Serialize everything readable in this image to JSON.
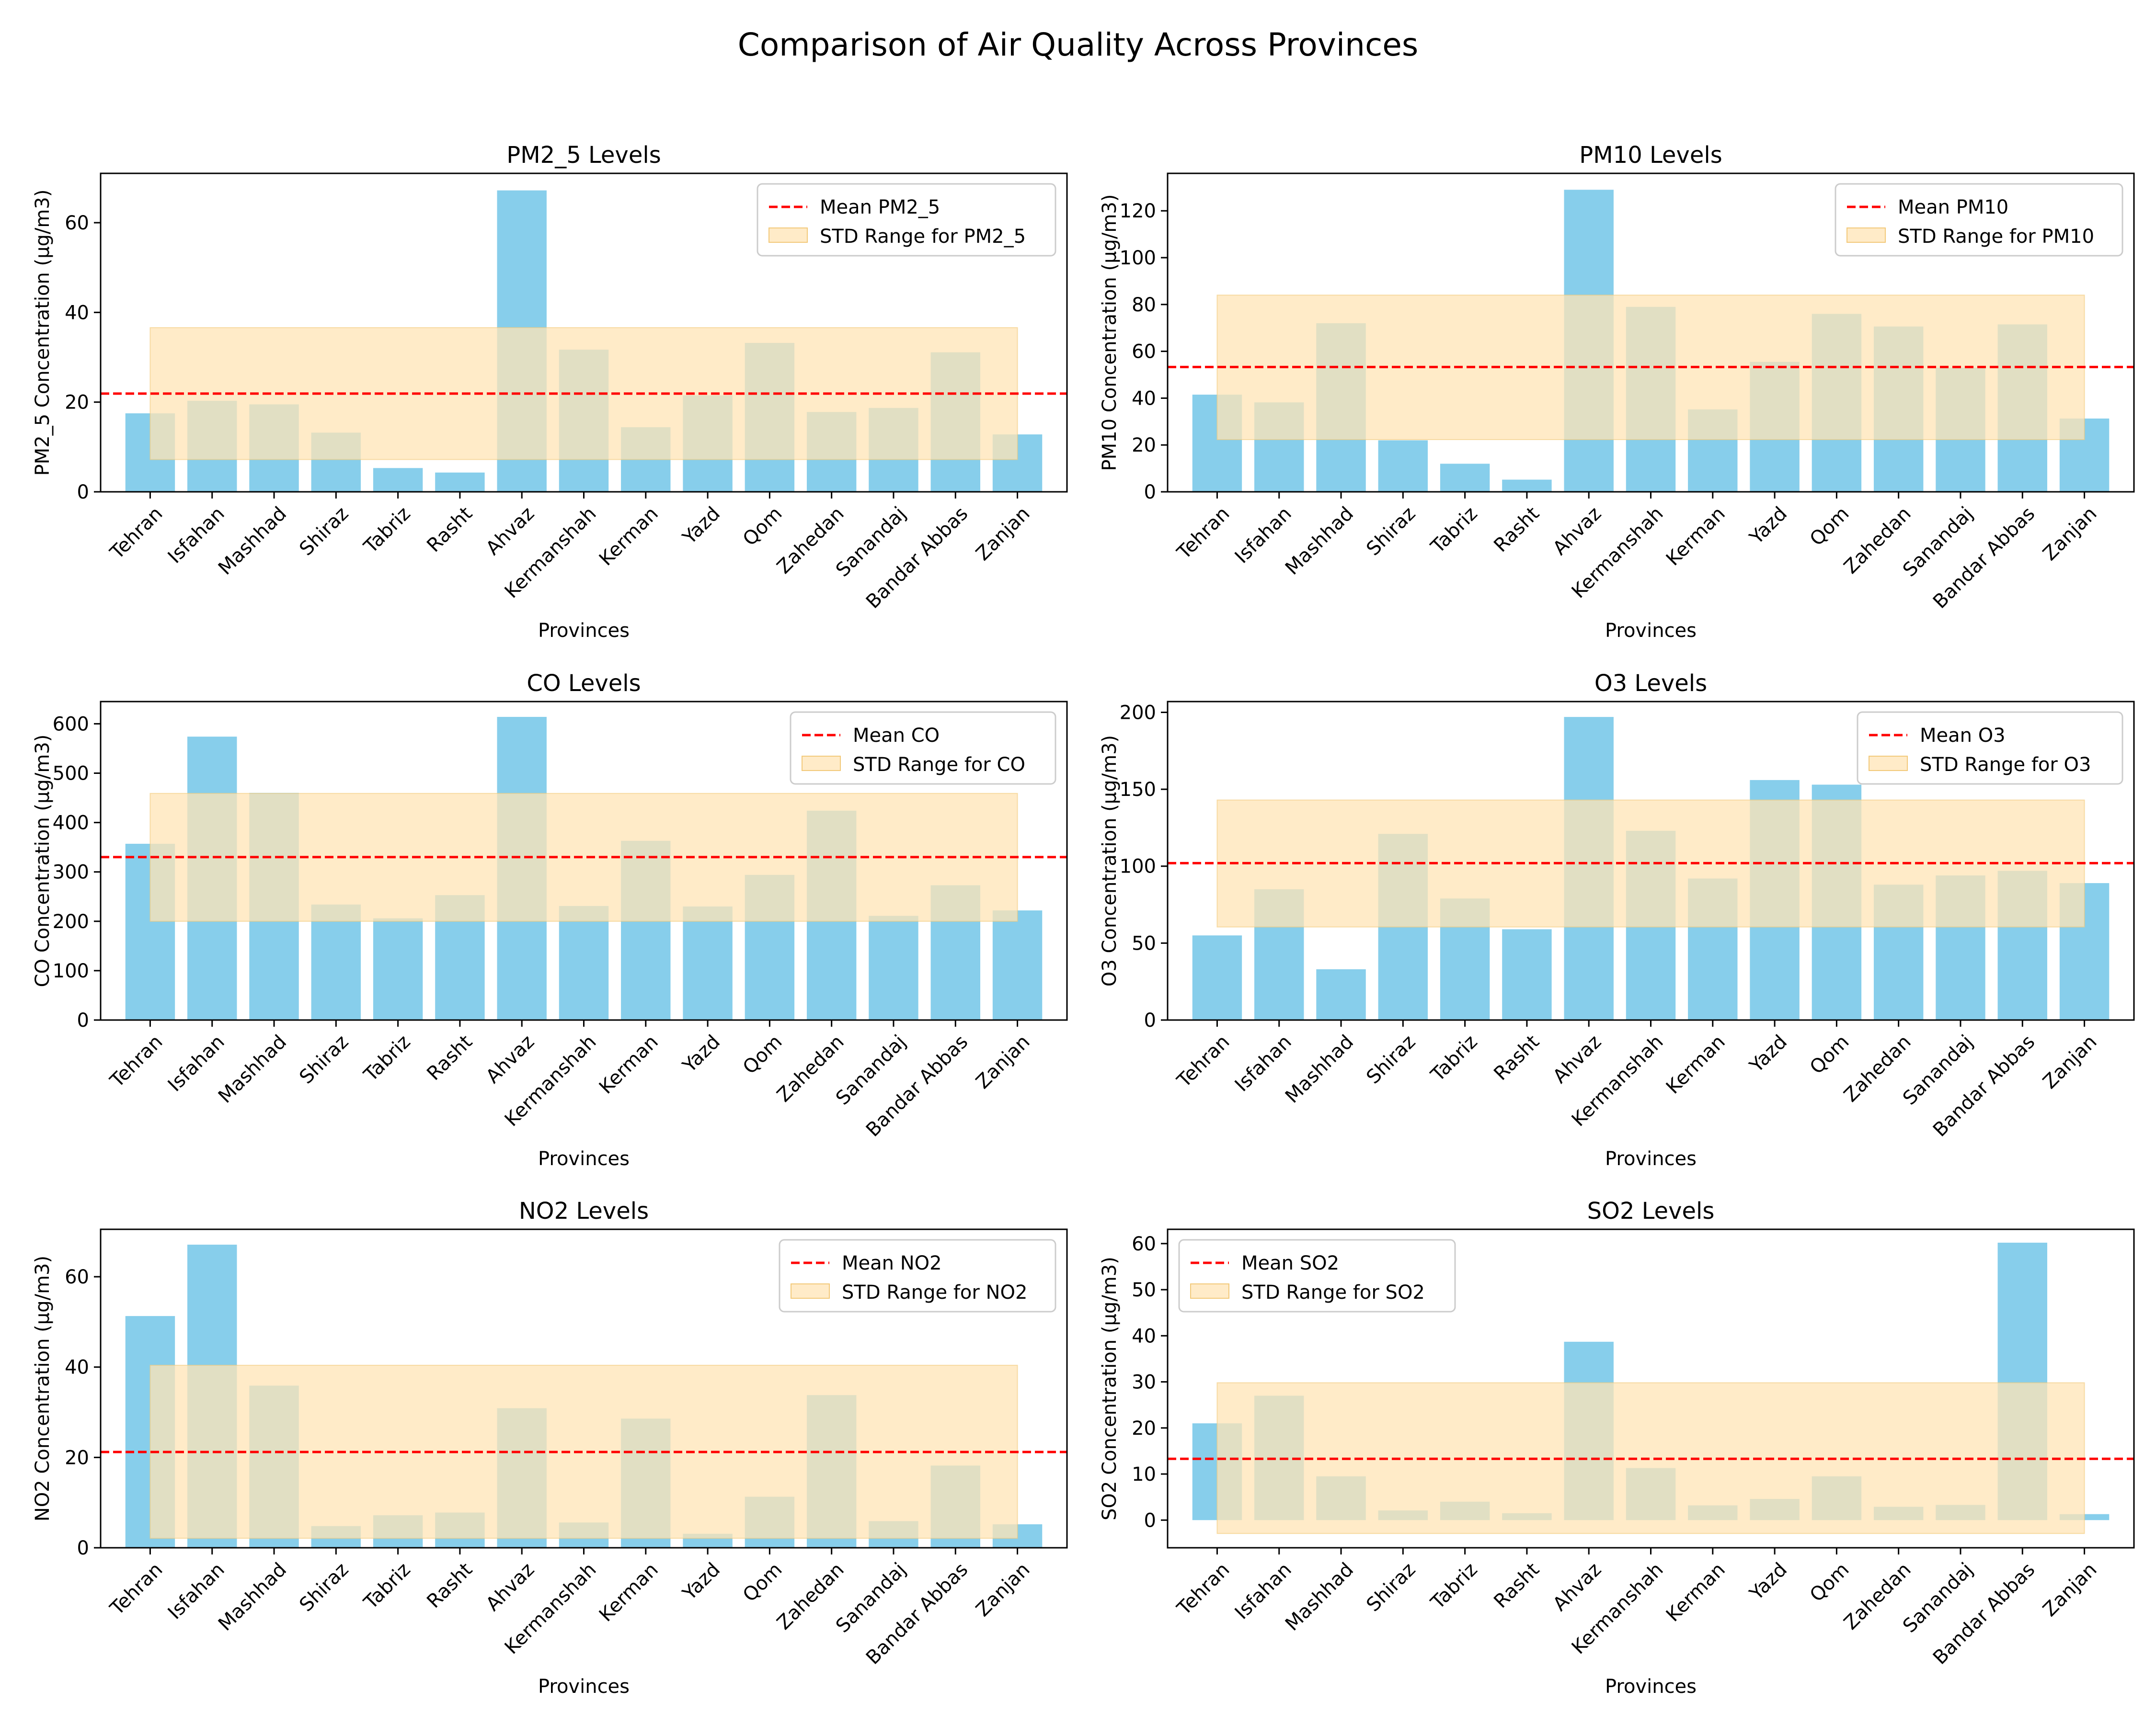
{
  "figure": {
    "title": "Comparison of Air Quality Across Provinces"
  },
  "colors": {
    "bar": "#87CEEB",
    "mean_line": "#FF0000",
    "std_band": "#FFE4B5"
  },
  "chart_data": [
    {
      "type": "bar",
      "title": "PM2_5 Levels",
      "xlabel": "Provinces",
      "ylabel": "PM2_5 Concentration (µg/m3)",
      "categories": [
        "Tehran",
        "Isfahan",
        "Mashhad",
        "Shiraz",
        "Tabriz",
        "Rasht",
        "Ahvaz",
        "Kermanshah",
        "Kerman",
        "Yazd",
        "Qom",
        "Zahedan",
        "Sanandaj",
        "Bandar Abbas",
        "Zanjan"
      ],
      "values": [
        17.5,
        20.3,
        19.5,
        13.2,
        5.3,
        4.3,
        67.2,
        31.7,
        14.4,
        21.5,
        33.2,
        17.8,
        18.7,
        31.1,
        12.8
      ],
      "mean": 21.9,
      "std_range": [
        7.2,
        36.6
      ],
      "ylim": [
        0,
        71
      ],
      "yticks": [
        0,
        20,
        40,
        60
      ],
      "legend": {
        "position": "top-right",
        "mean_label": "Mean PM2_5",
        "std_label": "STD Range for PM2_5"
      }
    },
    {
      "type": "bar",
      "title": "PM10 Levels",
      "xlabel": "Provinces",
      "ylabel": "PM10 Concentration (µg/m3)",
      "categories": [
        "Tehran",
        "Isfahan",
        "Mashhad",
        "Shiraz",
        "Tabriz",
        "Rasht",
        "Ahvaz",
        "Kermanshah",
        "Kerman",
        "Yazd",
        "Qom",
        "Zahedan",
        "Sanandaj",
        "Bandar Abbas",
        "Zanjan"
      ],
      "values": [
        41.5,
        38.2,
        72.0,
        22.0,
        12.0,
        5.2,
        129.0,
        79.0,
        35.2,
        55.5,
        76.0,
        70.6,
        53.0,
        71.5,
        31.3
      ],
      "mean": 53.3,
      "std_range": [
        22.3,
        84.0
      ],
      "ylim": [
        0,
        136
      ],
      "yticks": [
        0,
        20,
        40,
        60,
        80,
        100,
        120
      ],
      "legend": {
        "position": "top-right",
        "mean_label": "Mean PM10",
        "std_label": "STD Range for PM10"
      }
    },
    {
      "type": "bar",
      "title": "CO Levels",
      "xlabel": "Provinces",
      "ylabel": "CO Concentration (µg/m3)",
      "categories": [
        "Tehran",
        "Isfahan",
        "Mashhad",
        "Shiraz",
        "Tabriz",
        "Rasht",
        "Ahvaz",
        "Kermanshah",
        "Kerman",
        "Yazd",
        "Qom",
        "Zahedan",
        "Sanandaj",
        "Bandar Abbas",
        "Zanjan"
      ],
      "values": [
        357,
        574,
        460,
        234,
        206,
        253,
        614,
        231,
        363,
        230,
        294,
        424,
        211,
        273,
        222
      ],
      "mean": 330,
      "std_range": [
        200,
        459
      ],
      "ylim": [
        0,
        645
      ],
      "yticks": [
        0,
        100,
        200,
        300,
        400,
        500,
        600
      ],
      "legend": {
        "position": "top-right",
        "mean_label": "Mean CO",
        "std_label": "STD Range for CO"
      }
    },
    {
      "type": "bar",
      "title": "O3 Levels",
      "xlabel": "Provinces",
      "ylabel": "O3 Concentration (µg/m3)",
      "categories": [
        "Tehran",
        "Isfahan",
        "Mashhad",
        "Shiraz",
        "Tabriz",
        "Rasht",
        "Ahvaz",
        "Kermanshah",
        "Kerman",
        "Yazd",
        "Qom",
        "Zahedan",
        "Sanandaj",
        "Bandar Abbas",
        "Zanjan"
      ],
      "values": [
        55,
        85,
        33,
        121,
        79,
        59,
        197,
        123,
        92,
        156,
        153,
        88,
        94,
        97,
        89
      ],
      "mean": 102,
      "std_range": [
        60.5,
        143
      ],
      "ylim": [
        0,
        207
      ],
      "yticks": [
        0,
        50,
        100,
        150,
        200
      ],
      "legend": {
        "position": "top-right",
        "mean_label": "Mean O3",
        "std_label": "STD Range for O3"
      }
    },
    {
      "type": "bar",
      "title": "NO2 Levels",
      "xlabel": "Provinces",
      "ylabel": "NO2 Concentration (µg/m3)",
      "categories": [
        "Tehran",
        "Isfahan",
        "Mashhad",
        "Shiraz",
        "Tabriz",
        "Rasht",
        "Ahvaz",
        "Kermanshah",
        "Kerman",
        "Yazd",
        "Qom",
        "Zahedan",
        "Sanandaj",
        "Bandar Abbas",
        "Zanjan"
      ],
      "values": [
        51.3,
        67.1,
        35.9,
        4.8,
        7.2,
        7.8,
        30.9,
        5.6,
        28.6,
        3.1,
        11.3,
        33.8,
        5.9,
        18.2,
        5.2
      ],
      "mean": 21.2,
      "std_range": [
        2.1,
        40.4
      ],
      "ylim": [
        0,
        70.5
      ],
      "yticks": [
        0,
        20,
        40,
        60
      ],
      "legend": {
        "position": "top-right",
        "mean_label": "Mean NO2",
        "std_label": "STD Range for NO2"
      }
    },
    {
      "type": "bar",
      "title": "SO2 Levels",
      "xlabel": "Provinces",
      "ylabel": "SO2 Concentration (µg/m3)",
      "categories": [
        "Tehran",
        "Isfahan",
        "Mashhad",
        "Shiraz",
        "Tabriz",
        "Rasht",
        "Ahvaz",
        "Kermanshah",
        "Kerman",
        "Yazd",
        "Qom",
        "Zahedan",
        "Sanandaj",
        "Bandar Abbas",
        "Zanjan"
      ],
      "values": [
        21.0,
        27.0,
        9.5,
        2.1,
        4.0,
        1.5,
        38.7,
        11.3,
        3.2,
        4.6,
        9.5,
        2.9,
        3.3,
        60.2,
        1.3
      ],
      "mean": 13.3,
      "std_range": [
        -2.9,
        29.8
      ],
      "ylim": [
        -6,
        63.1
      ],
      "yticks": [
        0,
        10,
        20,
        30,
        40,
        50,
        60
      ],
      "legend": {
        "position": "top-left",
        "mean_label": "Mean SO2",
        "std_label": "STD Range for SO2"
      }
    }
  ]
}
